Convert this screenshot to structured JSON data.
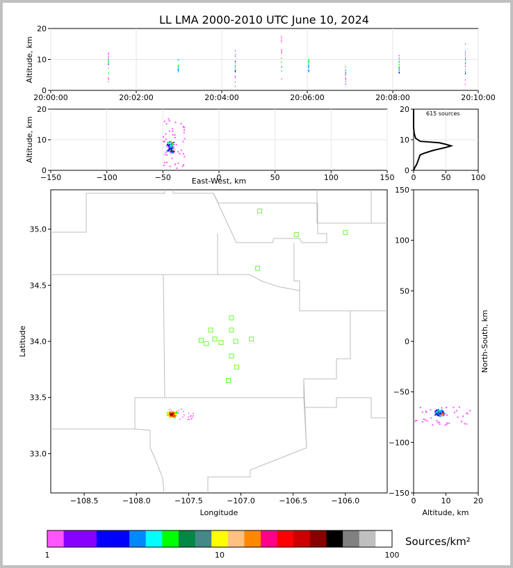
{
  "title": "LL LMA 2000-2010 UTC June 10, 2024",
  "colors": {
    "border": "#c0c0c0",
    "grid": "#e6e6e6",
    "station": "#66ff33",
    "map_lines": "#bdbdbd"
  },
  "time_height": {
    "ylabel": "Altitude, km",
    "yticks": [
      "0",
      "10",
      "20"
    ],
    "xticks": [
      "20:00:00",
      "20:02:00",
      "20:04:00",
      "20:06:00",
      "20:08:00",
      "20:10:00"
    ]
  },
  "ew_height": {
    "xlabel": "East-West, km",
    "ylabel": "Altitude, km",
    "xticks": [
      "−150",
      "−100",
      "−50",
      "0",
      "50",
      "100",
      "150"
    ],
    "yticks": [
      "0",
      "10",
      "20"
    ]
  },
  "histogram": {
    "label": "615 sources",
    "xticks": [
      "0",
      "50",
      "100"
    ],
    "yticks": [
      "0",
      "10",
      "20"
    ]
  },
  "plan_view": {
    "xlabel": "Longitude",
    "ylabel": "Latitude",
    "xticks": [
      "−108.5",
      "−108.0",
      "−107.5",
      "−107.0",
      "−106.5",
      "−106.0"
    ],
    "yticks": [
      "35.0",
      "34.5",
      "34.0",
      "33.5",
      "33.0"
    ]
  },
  "ns_height": {
    "xlabel": "Altitude, km",
    "ylabel": "North-South, km",
    "xticks": [
      "0",
      "10",
      "20"
    ],
    "yticks": [
      "150",
      "100",
      "50",
      "0",
      "−50",
      "−100",
      "−150"
    ]
  },
  "colorbar": {
    "label": "Sources/km²",
    "ticks": [
      "1",
      "10",
      "100"
    ],
    "colors": [
      "#ff55ff",
      "#8800ff",
      "#8800ff",
      "#0000ff",
      "#0000ff",
      "#0088ff",
      "#00ffff",
      "#00ff00",
      "#008844",
      "#448888",
      "#ffff00",
      "#ffc080",
      "#ff8800",
      "#ff0088",
      "#ff0000",
      "#cc0000",
      "#880000",
      "#000000",
      "#808080",
      "#c0c0c0",
      "#ffffff"
    ]
  },
  "chart_data": [
    {
      "type": "scatter",
      "panel": "time-height",
      "xlabel": "",
      "ylabel": "Altitude, km",
      "xlim": [
        "20:00:00",
        "20:10:00"
      ],
      "ylim": [
        0,
        20
      ],
      "grid": true,
      "flashes": [
        {
          "t": "20:01:21",
          "alt": [
            1.5,
            13.5
          ]
        },
        {
          "t": "20:02:59",
          "alt": [
            5.5,
            10.5
          ]
        },
        {
          "t": "20:04:19",
          "alt": [
            1,
            13.5
          ]
        },
        {
          "t": "20:05:24",
          "alt": [
            3.5,
            17.5
          ]
        },
        {
          "t": "20:06:02",
          "alt": [
            6,
            11
          ]
        },
        {
          "t": "20:06:54",
          "alt": [
            1,
            9
          ]
        },
        {
          "t": "20:08:09",
          "alt": [
            5,
            12
          ]
        },
        {
          "t": "20:09:42",
          "alt": [
            1.5,
            16
          ]
        }
      ]
    },
    {
      "type": "scatter",
      "panel": "east-west vs altitude",
      "xlabel": "East-West, km",
      "ylabel": "Altitude, km",
      "xlim": [
        -150,
        150
      ],
      "ylim": [
        0,
        20
      ],
      "cluster": {
        "x": [
          -50,
          -30
        ],
        "alt": [
          0.5,
          17.5
        ],
        "core_x": -43,
        "core_alt": 7.5
      }
    },
    {
      "type": "line",
      "panel": "altitude histogram",
      "annotation": "615 sources",
      "xlim": [
        0,
        100
      ],
      "ylim": [
        0,
        20
      ],
      "x": [
        0,
        2,
        5,
        10,
        15,
        30,
        40,
        50,
        58,
        50,
        40,
        10,
        3,
        1,
        0,
        0
      ],
      "y": [
        0,
        1,
        2,
        5,
        5.5,
        6.5,
        7,
        7.5,
        8,
        8.5,
        9,
        9.5,
        10.5,
        12,
        14,
        20
      ]
    },
    {
      "type": "heatmap",
      "panel": "plan view",
      "xlabel": "Longitude",
      "ylabel": "Latitude",
      "xlim": [
        -108.82,
        -105.6
      ],
      "ylim": [
        32.65,
        35.35
      ],
      "stations": [
        {
          "lon": -106.82,
          "lat": 35.16
        },
        {
          "lon": -106.47,
          "lat": 34.95
        },
        {
          "lon": -106.0,
          "lat": 34.97
        },
        {
          "lon": -106.84,
          "lat": 34.65
        },
        {
          "lon": -107.09,
          "lat": 34.21
        },
        {
          "lon": -107.29,
          "lat": 34.1
        },
        {
          "lon": -107.09,
          "lat": 34.1
        },
        {
          "lon": -107.38,
          "lat": 34.01
        },
        {
          "lon": -107.25,
          "lat": 34.02
        },
        {
          "lon": -107.33,
          "lat": 33.98
        },
        {
          "lon": -107.19,
          "lat": 33.99
        },
        {
          "lon": -107.05,
          "lat": 34.0
        },
        {
          "lon": -106.9,
          "lat": 34.02
        },
        {
          "lon": -107.09,
          "lat": 33.87
        },
        {
          "lon": -107.04,
          "lat": 33.77
        },
        {
          "lon": -107.12,
          "lat": 33.65
        }
      ],
      "cluster": {
        "lon": [
          -107.74,
          -107.5
        ],
        "lat": [
          33.29,
          33.41
        ]
      }
    },
    {
      "type": "scatter",
      "panel": "altitude vs north-south",
      "xlabel": "Altitude, km",
      "ylabel": "North-South, km",
      "xlim": [
        0,
        20
      ],
      "ylim": [
        -150,
        150
      ],
      "cluster": {
        "alt": [
          0.5,
          17.5
        ],
        "y": [
          -84,
          -65
        ],
        "core_alt": 8,
        "core_y": -71
      }
    }
  ]
}
